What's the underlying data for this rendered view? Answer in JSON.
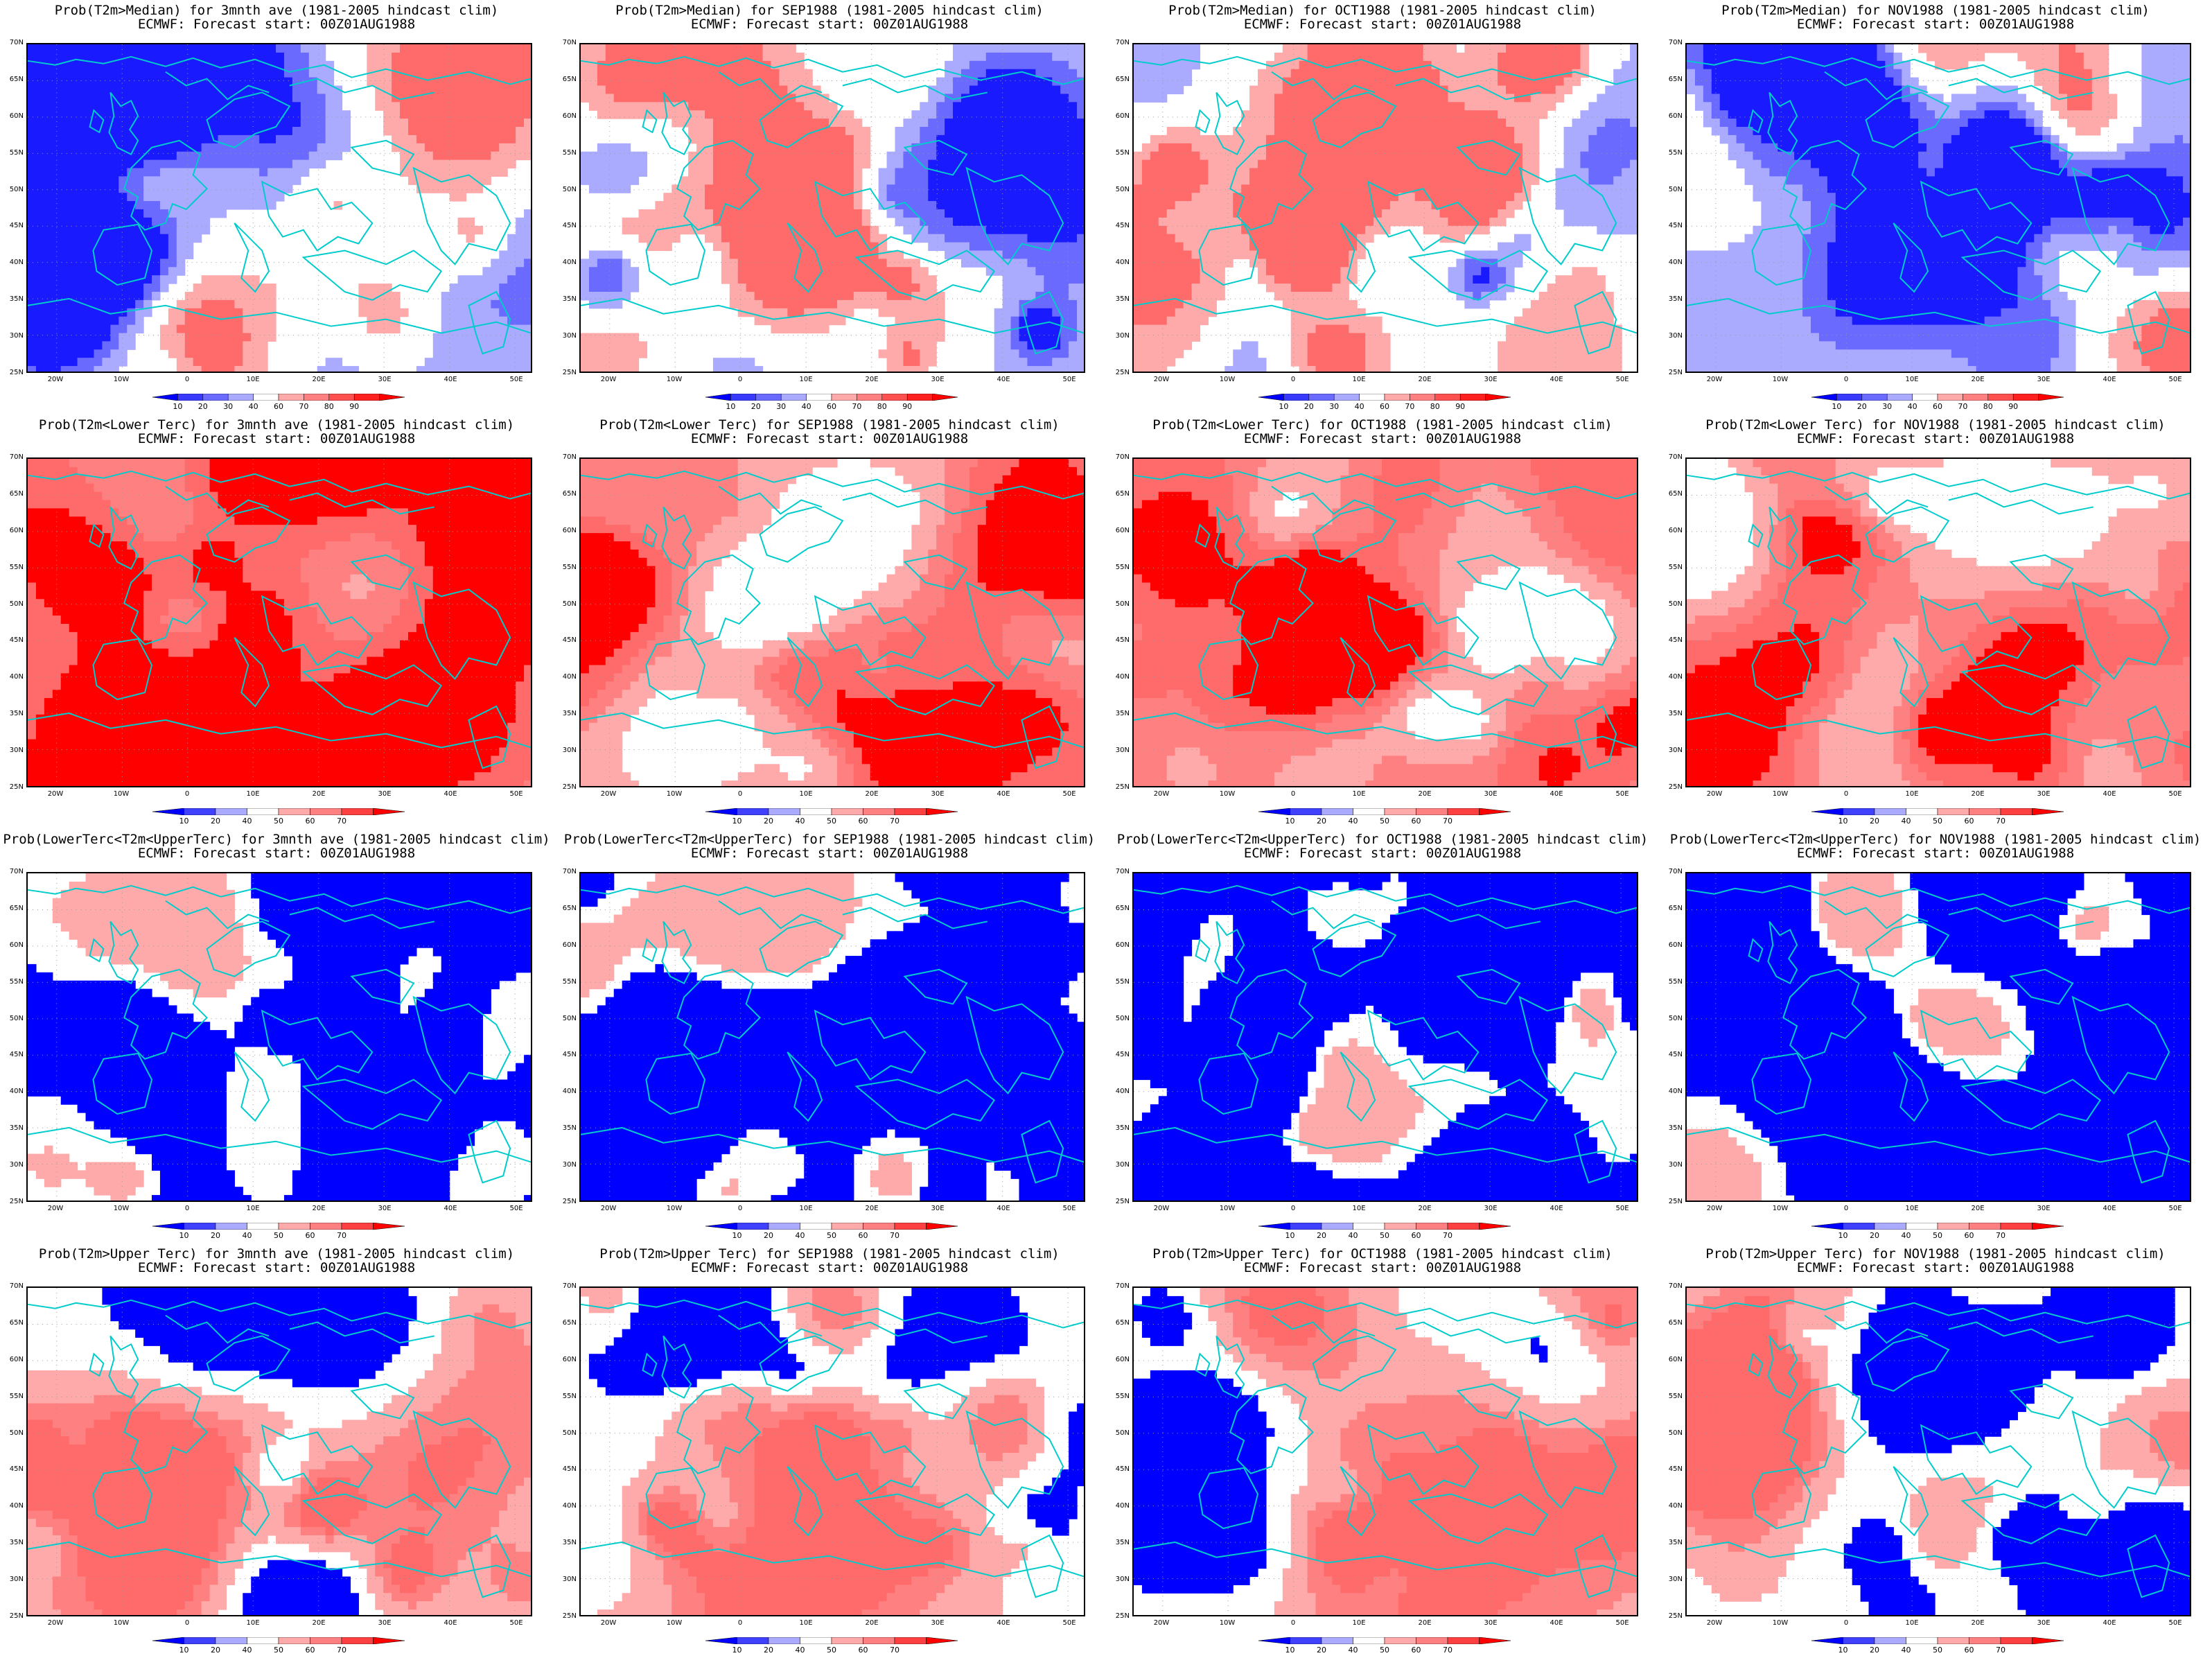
{
  "forecast_start": "ECMWF: Forecast start: 00Z01AUG1988",
  "axes": {
    "lat_labels": [
      "70N",
      "65N",
      "60N",
      "55N",
      "50N",
      "45N",
      "40N",
      "35N",
      "30N",
      "25N"
    ],
    "lon_labels": [
      "20W",
      "10W",
      "0",
      "10E",
      "20E",
      "30E",
      "40E",
      "50E"
    ]
  },
  "colors": {
    "dark_blue": "#1a1aff",
    "medium_blue": "#6a6aff",
    "light_blue": "#aaaaff",
    "light_red": "#ffaaaa",
    "medium_red": "#ff6a6a",
    "dark_red": "#ff0000",
    "coast": "#00cccc"
  },
  "rows": [
    {
      "variable": "Prob(T2m>Median)",
      "colorbar": [
        "10",
        "20",
        "30",
        "40",
        "60",
        "70",
        "80",
        "90"
      ],
      "panels": [
        {
          "title": "Prob(T2m>Median) for 3mnth ave (1981-2005 hindcast clim)",
          "scheme": "median-a"
        },
        {
          "title": "Prob(T2m>Median) for SEP1988 (1981-2005 hindcast clim)",
          "scheme": "median-b"
        },
        {
          "title": "Prob(T2m>Median) for OCT1988 (1981-2005 hindcast clim)",
          "scheme": "median-c"
        },
        {
          "title": "Prob(T2m>Median) for NOV1988 (1981-2005 hindcast clim)",
          "scheme": "median-d"
        }
      ]
    },
    {
      "variable": "Prob(T2m<Lower Terc)",
      "colorbar": [
        "10",
        "20",
        "40",
        "50",
        "60",
        "70"
      ],
      "panels": [
        {
          "title": "Prob(T2m<Lower Terc) for 3mnth ave (1981-2005 hindcast clim)",
          "scheme": "lower-a"
        },
        {
          "title": "Prob(T2m<Lower Terc) for SEP1988 (1981-2005 hindcast clim)",
          "scheme": "lower-b"
        },
        {
          "title": "Prob(T2m<Lower Terc) for OCT1988 (1981-2005 hindcast clim)",
          "scheme": "lower-c"
        },
        {
          "title": "Prob(T2m<Lower Terc) for NOV1988 (1981-2005 hindcast clim)",
          "scheme": "lower-d"
        }
      ]
    },
    {
      "variable": "Prob(LowerTerc<T2m<UpperTerc)",
      "colorbar": [
        "10",
        "20",
        "40",
        "50",
        "60",
        "70"
      ],
      "panels": [
        {
          "title": "Prob(LowerTerc<T2m<UpperTerc) for 3mnth ave (1981-2005 hindcast clim)",
          "scheme": "middle-a"
        },
        {
          "title": "Prob(LowerTerc<T2m<UpperTerc) for SEP1988 (1981-2005 hindcast clim)",
          "scheme": "middle-b"
        },
        {
          "title": "Prob(LowerTerc<T2m<UpperTerc) for OCT1988 (1981-2005 hindcast clim)",
          "scheme": "middle-c"
        },
        {
          "title": "Prob(LowerTerc<T2m<UpperTerc) for NOV1988 (1981-2005 hindcast clim)",
          "scheme": "middle-d"
        }
      ]
    },
    {
      "variable": "Prob(T2m>Upper Terc)",
      "colorbar": [
        "10",
        "20",
        "40",
        "50",
        "60",
        "70"
      ],
      "panels": [
        {
          "title": "Prob(T2m>Upper Terc) for 3mnth ave (1981-2005 hindcast clim)",
          "scheme": "upper-a"
        },
        {
          "title": "Prob(T2m>Upper Terc) for SEP1988 (1981-2005 hindcast clim)",
          "scheme": "upper-b"
        },
        {
          "title": "Prob(T2m>Upper Terc) for OCT1988 (1981-2005 hindcast clim)",
          "scheme": "upper-c"
        },
        {
          "title": "Prob(T2m>Upper Terc) for NOV1988 (1981-2005 hindcast clim)",
          "scheme": "upper-d"
        }
      ]
    }
  ]
}
